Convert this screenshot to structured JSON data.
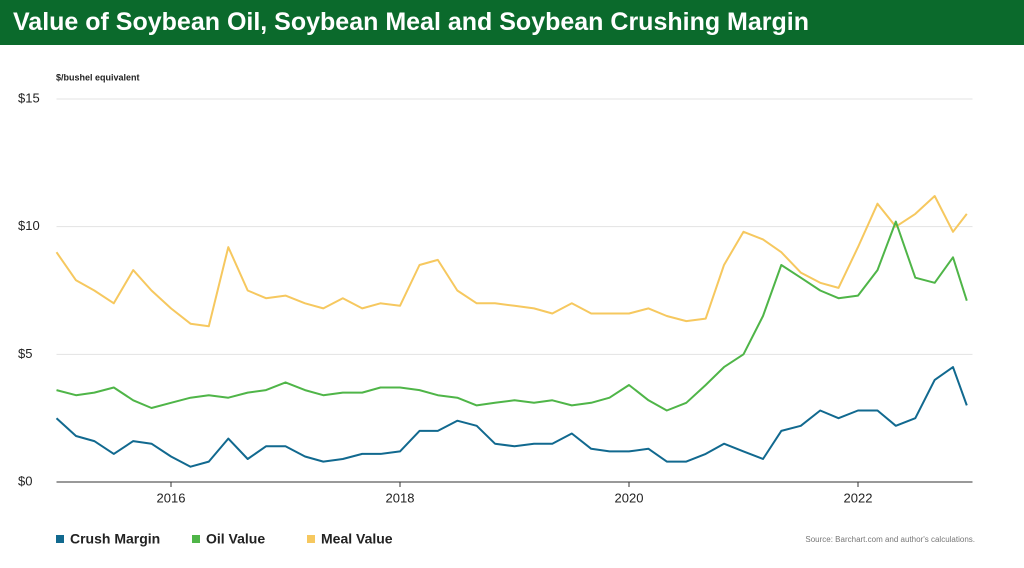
{
  "chart_data": {
    "type": "line",
    "title": "Value of Soybean Oil, Soybean Meal and Soybean Crushing Margin",
    "y_label": "$/bushel equivalent",
    "source": "Source: Barchart.com and author's calculations.",
    "x": [
      2015,
      2015.17,
      2015.33,
      2015.5,
      2015.67,
      2015.83,
      2016,
      2016.17,
      2016.33,
      2016.5,
      2016.67,
      2016.83,
      2017,
      2017.17,
      2017.33,
      2017.5,
      2017.67,
      2017.83,
      2018,
      2018.17,
      2018.33,
      2018.5,
      2018.67,
      2018.83,
      2019,
      2019.17,
      2019.33,
      2019.5,
      2019.67,
      2019.83,
      2020,
      2020.17,
      2020.33,
      2020.5,
      2020.67,
      2020.83,
      2021,
      2021.17,
      2021.33,
      2021.5,
      2021.67,
      2021.83,
      2022,
      2022.17,
      2022.33,
      2022.5,
      2022.67,
      2022.83,
      2022.95
    ],
    "series": [
      {
        "name": "Crush Margin",
        "color": "#11698f",
        "values": [
          2.5,
          1.8,
          1.6,
          1.1,
          1.6,
          1.5,
          1.0,
          0.6,
          0.8,
          1.7,
          0.9,
          1.4,
          1.4,
          1.0,
          0.8,
          0.9,
          1.1,
          1.1,
          1.2,
          2.0,
          2.0,
          2.4,
          2.2,
          1.5,
          1.4,
          1.5,
          1.5,
          1.9,
          1.3,
          1.2,
          1.2,
          1.3,
          0.8,
          0.8,
          1.1,
          1.5,
          1.2,
          0.9,
          2.0,
          2.2,
          2.8,
          2.5,
          2.8,
          2.8,
          2.2,
          2.5,
          4.0,
          4.5,
          3.0
        ]
      },
      {
        "name": "Oil Value",
        "color": "#4fb548",
        "values": [
          3.6,
          3.4,
          3.5,
          3.7,
          3.2,
          2.9,
          3.1,
          3.3,
          3.4,
          3.3,
          3.5,
          3.6,
          3.9,
          3.6,
          3.4,
          3.5,
          3.5,
          3.7,
          3.7,
          3.6,
          3.4,
          3.3,
          3.0,
          3.1,
          3.2,
          3.1,
          3.2,
          3.0,
          3.1,
          3.3,
          3.8,
          3.2,
          2.8,
          3.1,
          3.8,
          4.5,
          5.0,
          6.5,
          8.5,
          8.0,
          7.5,
          7.2,
          7.3,
          8.3,
          10.2,
          8.0,
          7.8,
          8.8,
          7.1
        ]
      },
      {
        "name": "Meal Value",
        "color": "#f6c85f",
        "values": [
          9.0,
          7.9,
          7.5,
          7.0,
          8.3,
          7.5,
          6.8,
          6.2,
          6.1,
          9.2,
          7.5,
          7.2,
          7.3,
          7.0,
          6.8,
          7.2,
          6.8,
          7.0,
          6.9,
          8.5,
          8.7,
          7.5,
          7.0,
          7.0,
          6.9,
          6.8,
          6.6,
          7.0,
          6.6,
          6.6,
          6.6,
          6.8,
          6.5,
          6.3,
          6.4,
          8.5,
          9.8,
          9.5,
          9.0,
          8.2,
          7.8,
          7.6,
          9.2,
          10.9,
          10.0,
          10.5,
          11.2,
          9.8,
          10.5
        ]
      }
    ],
    "xlim": [
      2015,
      2023
    ],
    "xticks": [
      2016,
      2018,
      2020,
      2022
    ],
    "ylim": [
      0,
      15
    ],
    "yticks": [
      {
        "value": 0,
        "label": "$0"
      },
      {
        "value": 5,
        "label": "$5"
      },
      {
        "value": 10,
        "label": "$10"
      },
      {
        "value": 15,
        "label": "$15"
      }
    ],
    "grid": true
  }
}
